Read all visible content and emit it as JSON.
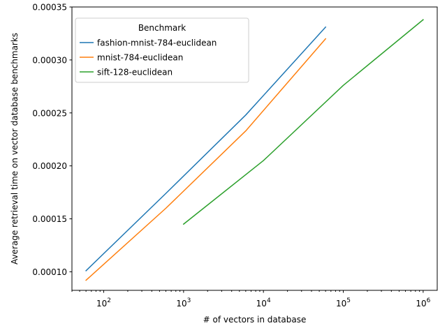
{
  "chart_data": {
    "type": "line",
    "xscale": "log",
    "xlabel": "# of vectors in database",
    "ylabel": "Average retrieval time on vector database benchmarks",
    "xlim": [
      40,
      1500000
    ],
    "ylim": [
      8.25e-05,
      0.00035
    ],
    "xticks": [
      {
        "value": 100,
        "base": "10",
        "exp": "2"
      },
      {
        "value": 1000,
        "base": "10",
        "exp": "3"
      },
      {
        "value": 10000,
        "base": "10",
        "exp": "4"
      },
      {
        "value": 100000,
        "base": "10",
        "exp": "5"
      },
      {
        "value": 1000000,
        "base": "10",
        "exp": "6"
      }
    ],
    "yticks": [
      {
        "value": 0.0001,
        "label": "0.00010"
      },
      {
        "value": 0.00015,
        "label": "0.00015"
      },
      {
        "value": 0.0002,
        "label": "0.00020"
      },
      {
        "value": 0.00025,
        "label": "0.00025"
      },
      {
        "value": 0.0003,
        "label": "0.00030"
      },
      {
        "value": 0.00035,
        "label": "0.00035"
      }
    ],
    "legend": {
      "title": "Benchmark",
      "placement": "upper-left"
    },
    "series": [
      {
        "name": "fashion-mnist-784-euclidean",
        "color": "#1f77b4",
        "x": [
          60,
          600,
          6000,
          60000
        ],
        "y": [
          0.000101,
          0.000174,
          0.000248,
          0.000331
        ]
      },
      {
        "name": "mnist-784-euclidean",
        "color": "#ff7f0e",
        "x": [
          60,
          600,
          6000,
          60000
        ],
        "y": [
          9.2e-05,
          0.00016,
          0.000233,
          0.00032
        ]
      },
      {
        "name": "sift-128-euclidean",
        "color": "#2ca02c",
        "x": [
          1000,
          10000,
          100000,
          1000000
        ],
        "y": [
          0.000145,
          0.000205,
          0.000276,
          0.000338
        ]
      }
    ]
  }
}
